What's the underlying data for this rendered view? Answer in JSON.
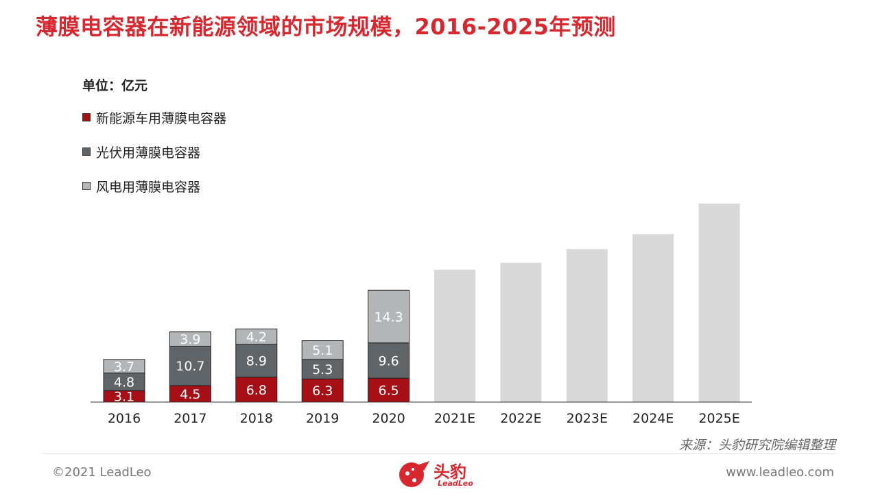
{
  "title": "薄膜电容器在新能源领域的市场规模，2016-2025年预测",
  "unit_label": "单位：亿元",
  "legend": [
    {
      "label": "新能源车用薄膜电容器",
      "color": "#a50f15"
    },
    {
      "label": "光伏用薄膜电容器",
      "color": "#5f6469"
    },
    {
      "label": "风电用薄膜电容器",
      "color": "#b3b6b9"
    }
  ],
  "source": "来源：头豹研究院编辑整理",
  "copyright": "©2021 LeadLeo",
  "website": "www.leadleo.com",
  "logo": {
    "text": "头豹",
    "sub": "LeadLeo"
  },
  "colors": {
    "accent": "#d7282f",
    "forecast": "#d9d9d9"
  },
  "chart_data": {
    "type": "bar",
    "stacked": true,
    "categories": [
      "2016",
      "2017",
      "2018",
      "2019",
      "2020",
      "2021E",
      "2022E",
      "2023E",
      "2024E",
      "2025E"
    ],
    "series": [
      {
        "name": "新能源车用薄膜电容器",
        "color": "#a50f15",
        "values": [
          3.1,
          4.5,
          6.8,
          6.3,
          6.5,
          null,
          null,
          null,
          null,
          null
        ]
      },
      {
        "name": "光伏用薄膜电容器",
        "color": "#5f6469",
        "values": [
          4.8,
          10.7,
          8.9,
          5.3,
          9.6,
          null,
          null,
          null,
          null,
          null
        ]
      },
      {
        "name": "风电用薄膜电容器",
        "color": "#b3b6b9",
        "values": [
          3.7,
          3.9,
          4.2,
          5.1,
          14.3,
          null,
          null,
          null,
          null,
          null
        ]
      }
    ],
    "forecast_totals": [
      null,
      null,
      null,
      null,
      null,
      36.0,
      37.9,
      41.6,
      45.7,
      54.0
    ],
    "ylim": [
      0,
      56
    ],
    "legend_position": "top-left",
    "grid": false
  }
}
